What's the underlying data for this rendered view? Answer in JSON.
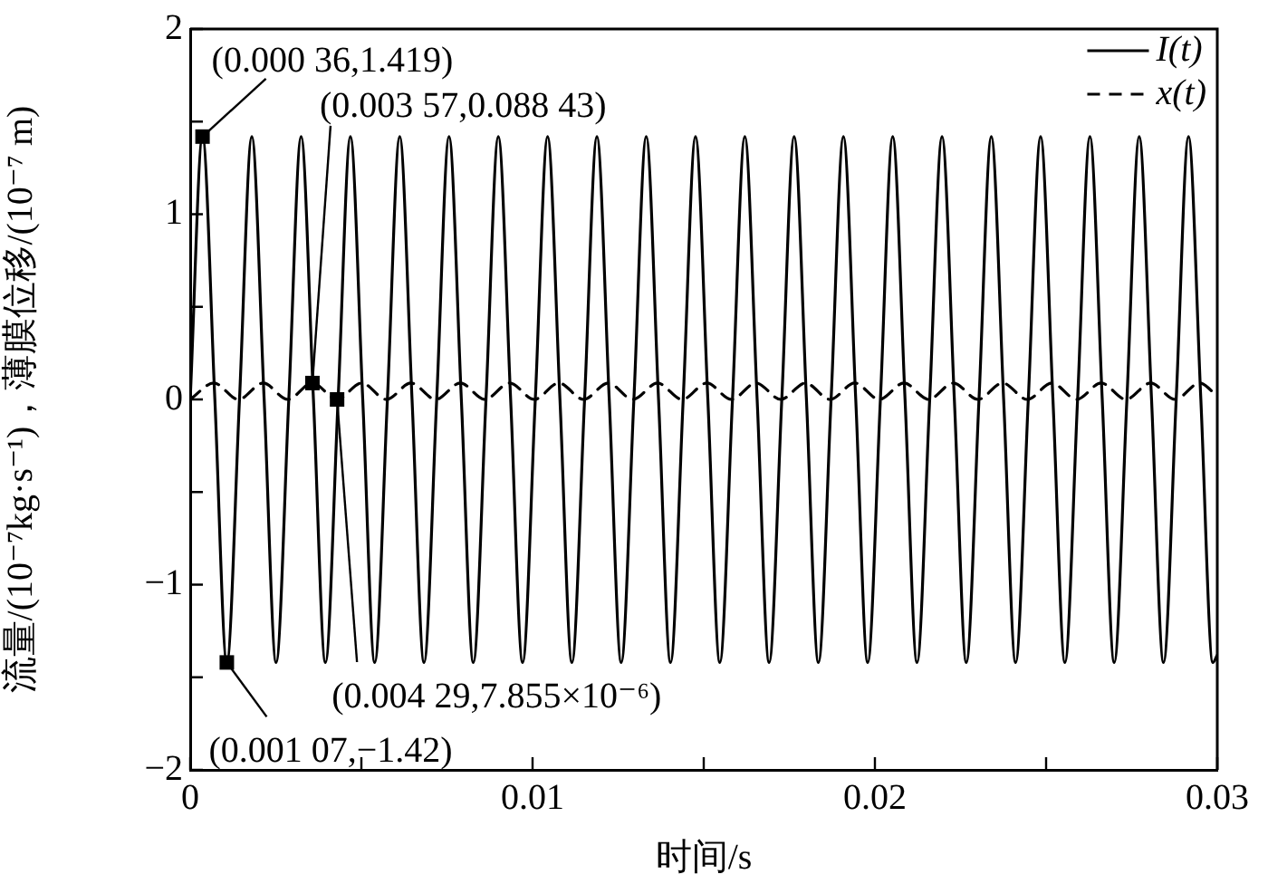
{
  "chart_data": {
    "type": "line",
    "xlabel": "时间/s",
    "ylabel": "流量/(10⁻⁷kg·s⁻¹)，薄膜位移/(10⁻⁷ m)",
    "xlim": [
      0,
      0.03
    ],
    "ylim": [
      -2,
      2
    ],
    "xticks": [
      0,
      {
        "value": 0.005,
        "label": null
      },
      0.01,
      {
        "value": 0.015,
        "label": null
      },
      0.02,
      {
        "value": 0.025,
        "label": null
      },
      0.03
    ],
    "yticks": [
      {
        "value": -2,
        "label": "−2"
      },
      {
        "value": -1.5,
        "label": null
      },
      {
        "value": -1,
        "label": "−1"
      },
      {
        "value": -0.5,
        "label": null
      },
      0,
      {
        "value": 0.5,
        "label": null
      },
      1,
      {
        "value": 1.5,
        "label": null
      },
      2
    ],
    "grid": false,
    "legend": "top right",
    "marker": "none",
    "series": [
      {
        "name": "I(t)",
        "color": "#000000",
        "line_style": "solid",
        "x": [
          0,
          0.00036,
          0.00072,
          0.00107,
          0.00144,
          0.0018,
          0.00216,
          0.00251,
          0.00288,
          0.00324,
          0.0036,
          0.00395,
          0.00432,
          0.00468,
          0.00504,
          0.00539,
          0.00576,
          0.00612,
          0.00648,
          0.00683,
          0.0072,
          0.00756,
          0.00792,
          0.00827,
          0.00864,
          0.009,
          0.00936,
          0.00971,
          0.01008,
          0.01044,
          0.0108,
          0.01115,
          0.01152,
          0.01188,
          0.01224,
          0.01259,
          0.01296,
          0.01332,
          0.01368,
          0.01403,
          0.0144,
          0.01476,
          0.01512,
          0.01547,
          0.01584,
          0.0162,
          0.01656,
          0.01691,
          0.01728,
          0.01764,
          0.018,
          0.01835,
          0.01872,
          0.01908,
          0.01944,
          0.01979,
          0.02016,
          0.02052,
          0.02088,
          0.02123,
          0.0216,
          0.02196,
          0.02232,
          0.02267,
          0.02304,
          0.0234,
          0.02376,
          0.02411,
          0.02448,
          0.02484,
          0.0252,
          0.02555,
          0.02592,
          0.02628,
          0.02664,
          0.02699,
          0.02736,
          0.02772,
          0.02808,
          0.02843,
          0.0288,
          0.02916,
          0.02952,
          0.02987,
          0.03
        ],
        "values": [
          0,
          1.419,
          0,
          -1.42,
          0,
          1.419,
          0,
          -1.42,
          0,
          1.419,
          0,
          -1.42,
          0,
          1.419,
          0,
          -1.42,
          0,
          1.419,
          0,
          -1.42,
          0,
          1.419,
          0,
          -1.42,
          0,
          1.419,
          0,
          -1.42,
          0,
          1.419,
          0,
          -1.42,
          0,
          1.419,
          0,
          -1.42,
          0,
          1.419,
          0,
          -1.42,
          0,
          1.419,
          0,
          -1.42,
          0,
          1.419,
          0,
          -1.42,
          0,
          1.419,
          0,
          -1.42,
          0,
          1.419,
          0,
          -1.42,
          0,
          1.419,
          0,
          -1.42,
          0,
          1.419,
          0,
          -1.42,
          0,
          1.419,
          0,
          -1.42,
          0,
          1.419,
          0,
          -1.42,
          0,
          1.419,
          0,
          -1.42,
          0,
          1.419,
          0,
          -1.42,
          0,
          1.419,
          0,
          -1.42,
          -1.38
        ]
      },
      {
        "name": "x(t)",
        "color": "#000000",
        "line_style": "dashed",
        "x": [
          0,
          0.00069,
          0.00141,
          0.00213,
          0.00285,
          0.00357,
          0.00429,
          0.00501,
          0.00573,
          0.00645,
          0.00717,
          0.00789,
          0.00861,
          0.00933,
          0.01005,
          0.01077,
          0.01149,
          0.01221,
          0.01293,
          0.01365,
          0.01437,
          0.01509,
          0.01581,
          0.01653,
          0.01725,
          0.01797,
          0.01869,
          0.01941,
          0.02013,
          0.02085,
          0.02157,
          0.02229,
          0.02301,
          0.02373,
          0.02445,
          0.02517,
          0.02589,
          0.02661,
          0.02733,
          0.02805,
          0.02877,
          0.02949,
          0.03
        ],
        "values": [
          0,
          0.08843,
          0,
          0.08843,
          0,
          0.08843,
          0,
          0.08843,
          0,
          0.08843,
          0,
          0.08843,
          0,
          0.08843,
          0,
          0.08843,
          0,
          0.08843,
          0,
          0.08843,
          0,
          0.08843,
          0,
          0.08843,
          0,
          0.08843,
          0,
          0.08843,
          0,
          0.08843,
          0,
          0.08843,
          0,
          0.08843,
          0,
          0.08843,
          0,
          0.08843,
          0,
          0.08843,
          0,
          0.08843,
          0.017
        ]
      }
    ],
    "annotations": [
      {
        "text": "(0.000 36,1.419)",
        "x": 0.00036,
        "y": 1.419
      },
      {
        "text": "(0.003 57,0.088 43)",
        "x": 0.00357,
        "y": 0.08843
      },
      {
        "text": "(0.004 29,7.855×10⁻⁶)",
        "x": 0.00429,
        "y": 7.855e-06
      },
      {
        "text": "(0.001 07,−1.42)",
        "x": 0.00107,
        "y": -1.42
      }
    ]
  }
}
